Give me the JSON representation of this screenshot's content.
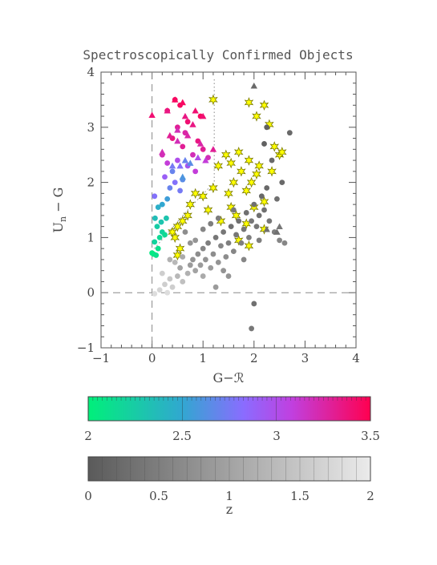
{
  "chart_data": {
    "type": "scatter",
    "title": "Spectroscopically Confirmed Objects",
    "xlabel": "G−ℛ",
    "ylabel_main": "U",
    "ylabel_sub": "n",
    "ylabel_rest": " − G",
    "xlim": [
      -1,
      4
    ],
    "ylim": [
      -1,
      4
    ],
    "x_ticks": [
      "−1",
      "0",
      "1",
      "2",
      "3",
      "4"
    ],
    "y_ticks": [
      "−1",
      "0",
      "1",
      "2",
      "3",
      "4"
    ],
    "grid": false,
    "colors": {
      "z_high_low": "#00f07a",
      "z_high_mid": "#8a6cff",
      "z_high_high": "#ff0060",
      "star": "#ffff00",
      "low_z_gray": "#666666",
      "marker_edge": "#7a7a00"
    },
    "reference_lines": [
      {
        "kind": "dashed",
        "orientation": "vertical",
        "x": 0
      },
      {
        "kind": "dashed",
        "orientation": "horizontal",
        "y": 0
      },
      {
        "kind": "dotted",
        "points": [
          [
            0.0,
            0.75
          ],
          [
            0.68,
            1.48
          ],
          [
            1.22,
            2.0
          ],
          [
            1.22,
            3.9
          ]
        ]
      }
    ],
    "series": [
      {
        "marker": "circle",
        "note_z": "z 2-3.5 colour coded",
        "points": [
          [
            0.0,
            0.72,
            2.05
          ],
          [
            0.03,
            0.7,
            2.05
          ],
          [
            0.08,
            0.68,
            2.1
          ],
          [
            0.12,
            0.8,
            2.1
          ],
          [
            0.05,
            0.92,
            2.2
          ],
          [
            0.15,
            1.0,
            2.15
          ],
          [
            0.2,
            1.1,
            2.2
          ],
          [
            0.25,
            1.05,
            2.15
          ],
          [
            0.1,
            1.2,
            2.25
          ],
          [
            0.18,
            1.28,
            2.3
          ],
          [
            0.28,
            1.35,
            2.3
          ],
          [
            0.06,
            1.35,
            2.35
          ],
          [
            0.2,
            1.6,
            2.5
          ],
          [
            0.3,
            1.7,
            2.55
          ],
          [
            0.12,
            1.55,
            2.45
          ],
          [
            0.35,
            1.9,
            2.7
          ],
          [
            0.05,
            1.75,
            2.8
          ],
          [
            0.45,
            2.0,
            2.8
          ],
          [
            0.55,
            1.85,
            2.75
          ],
          [
            0.25,
            2.1,
            2.9
          ],
          [
            0.4,
            2.2,
            2.7
          ],
          [
            0.6,
            2.05,
            2.65
          ],
          [
            0.7,
            2.3,
            2.95
          ],
          [
            0.5,
            2.4,
            3.0
          ],
          [
            0.3,
            2.35,
            3.1
          ],
          [
            0.2,
            2.5,
            3.2
          ],
          [
            0.8,
            2.5,
            3.2
          ],
          [
            0.6,
            2.65,
            3.3
          ],
          [
            0.9,
            2.75,
            3.35
          ],
          [
            0.4,
            2.8,
            3.35
          ],
          [
            0.5,
            3.0,
            3.3
          ],
          [
            0.7,
            3.1,
            3.4
          ],
          [
            0.3,
            3.3,
            3.4
          ],
          [
            0.55,
            3.4,
            3.45
          ],
          [
            0.65,
            2.9,
            3.25
          ],
          [
            1.0,
            2.6,
            3.3
          ],
          [
            1.1,
            2.45,
            3.2
          ],
          [
            0.85,
            2.2,
            3.1
          ],
          [
            0.95,
            3.2,
            3.45
          ],
          [
            0.45,
            3.5,
            3.45
          ]
        ]
      },
      {
        "marker": "triangle",
        "points": [
          [
            0.0,
            3.22,
            3.4
          ],
          [
            0.2,
            2.55,
            3.2
          ],
          [
            0.3,
            3.3,
            3.35
          ],
          [
            0.45,
            3.5,
            3.45
          ],
          [
            0.5,
            2.95,
            3.2
          ],
          [
            0.6,
            3.45,
            3.45
          ],
          [
            0.65,
            3.2,
            3.35
          ],
          [
            0.7,
            2.85,
            3.25
          ],
          [
            0.8,
            3.05,
            3.35
          ],
          [
            0.85,
            3.3,
            3.4
          ],
          [
            0.55,
            2.3,
            2.8
          ],
          [
            0.65,
            2.4,
            2.7
          ],
          [
            0.75,
            2.35,
            2.65
          ],
          [
            0.4,
            2.3,
            2.75
          ],
          [
            0.95,
            2.7,
            3.25
          ],
          [
            1.05,
            2.4,
            3.1
          ],
          [
            0.5,
            2.75,
            3.2
          ],
          [
            0.35,
            2.85,
            3.3
          ],
          [
            0.6,
            2.1,
            2.6
          ],
          [
            1.2,
            2.6,
            3.3
          ],
          [
            1.0,
            3.2,
            3.4
          ],
          [
            0.9,
            2.45,
            3.0
          ]
        ]
      },
      {
        "marker": "star",
        "color": "#ffff00",
        "points": [
          [
            1.2,
            3.5
          ],
          [
            1.9,
            3.45
          ],
          [
            2.2,
            3.4
          ],
          [
            2.05,
            3.2
          ],
          [
            2.3,
            3.05
          ],
          [
            2.4,
            2.65
          ],
          [
            2.5,
            2.5
          ],
          [
            1.7,
            2.55
          ],
          [
            1.45,
            2.5
          ],
          [
            1.3,
            2.3
          ],
          [
            1.55,
            2.35
          ],
          [
            1.9,
            2.4
          ],
          [
            2.1,
            2.3
          ],
          [
            1.75,
            2.2
          ],
          [
            2.05,
            2.15
          ],
          [
            1.95,
            2.0
          ],
          [
            1.6,
            2.0
          ],
          [
            1.85,
            1.85
          ],
          [
            1.2,
            1.9
          ],
          [
            1.5,
            1.8
          ],
          [
            1.0,
            1.75
          ],
          [
            0.85,
            1.8
          ],
          [
            0.75,
            1.6
          ],
          [
            0.7,
            1.4
          ],
          [
            0.6,
            1.3
          ],
          [
            0.5,
            1.2
          ],
          [
            0.45,
            1.0
          ],
          [
            0.55,
            0.8
          ],
          [
            0.5,
            0.68
          ],
          [
            0.4,
            1.1
          ],
          [
            1.65,
            1.4
          ],
          [
            1.35,
            1.3
          ],
          [
            2.0,
            1.55
          ],
          [
            2.2,
            1.65
          ],
          [
            1.55,
            1.55
          ],
          [
            1.1,
            1.5
          ],
          [
            1.9,
            0.85
          ],
          [
            2.2,
            1.15
          ],
          [
            1.85,
            1.25
          ],
          [
            1.7,
            0.95
          ],
          [
            2.35,
            2.2
          ],
          [
            2.55,
            2.55
          ]
        ]
      },
      {
        "marker": "circle",
        "color": "#666666",
        "note_z": "z 0-2 grayscale",
        "points": [
          [
            0.05,
            -0.02,
            1.8
          ],
          [
            0.15,
            0.05,
            1.7
          ],
          [
            0.25,
            0.15,
            1.6
          ],
          [
            0.35,
            0.25,
            1.5
          ],
          [
            0.4,
            0.1,
            1.6
          ],
          [
            0.5,
            0.3,
            1.3
          ],
          [
            0.55,
            0.45,
            1.0
          ],
          [
            0.6,
            0.2,
            1.4
          ],
          [
            0.7,
            0.35,
            1.2
          ],
          [
            0.75,
            0.5,
            0.9
          ],
          [
            0.8,
            0.6,
            0.8
          ],
          [
            0.85,
            0.4,
            1.0
          ],
          [
            0.9,
            0.7,
            0.7
          ],
          [
            0.95,
            0.5,
            0.9
          ],
          [
            1.0,
            0.8,
            0.6
          ],
          [
            1.05,
            0.6,
            0.8
          ],
          [
            1.1,
            0.9,
            0.5
          ],
          [
            1.15,
            0.45,
            0.9
          ],
          [
            1.2,
            0.7,
            0.7
          ],
          [
            1.25,
            1.0,
            0.4
          ],
          [
            1.3,
            0.55,
            0.8
          ],
          [
            1.35,
            0.85,
            0.6
          ],
          [
            1.4,
            1.1,
            0.4
          ],
          [
            1.45,
            0.65,
            0.7
          ],
          [
            1.5,
            0.9,
            0.5
          ],
          [
            1.55,
            1.2,
            0.3
          ],
          [
            1.6,
            0.75,
            0.6
          ],
          [
            1.65,
            1.05,
            0.4
          ],
          [
            1.7,
            1.3,
            0.3
          ],
          [
            1.75,
            0.9,
            0.5
          ],
          [
            1.8,
            1.15,
            0.4
          ],
          [
            1.85,
            1.45,
            0.3
          ],
          [
            1.9,
            1.0,
            0.5
          ],
          [
            1.95,
            1.3,
            0.4
          ],
          [
            2.0,
            1.6,
            0.3
          ],
          [
            2.05,
            1.2,
            0.4
          ],
          [
            2.1,
            1.4,
            0.3
          ],
          [
            2.15,
            1.75,
            0.2
          ],
          [
            2.2,
            1.5,
            0.3
          ],
          [
            2.25,
            1.9,
            0.2
          ],
          [
            2.3,
            1.3,
            0.4
          ],
          [
            2.4,
            1.1,
            0.5
          ],
          [
            2.5,
            0.95,
            0.6
          ],
          [
            2.6,
            0.9,
            0.6
          ],
          [
            2.45,
            1.7,
            0.3
          ],
          [
            2.2,
            2.7,
            0.1
          ],
          [
            2.25,
            3.0,
            0.1
          ],
          [
            2.7,
            2.9,
            0.2
          ],
          [
            2.35,
            2.4,
            0.2
          ],
          [
            2.55,
            2.0,
            0.2
          ],
          [
            2.0,
            -0.2,
            0.3
          ],
          [
            1.95,
            -0.65,
            0.4
          ],
          [
            1.25,
            0.1,
            0.9
          ],
          [
            0.35,
            0.6,
            1.2
          ],
          [
            0.6,
            0.65,
            1.1
          ],
          [
            0.85,
            0.95,
            0.8
          ],
          [
            1.0,
            0.3,
            1.1
          ],
          [
            0.2,
            0.35,
            1.6
          ],
          [
            0.45,
            0.55,
            1.3
          ],
          [
            0.3,
            0.0,
            1.8
          ],
          [
            1.5,
            0.3,
            0.8
          ],
          [
            1.8,
            0.6,
            0.6
          ],
          [
            2.1,
            0.95,
            0.5
          ],
          [
            1.3,
            1.35,
            0.5
          ],
          [
            1.6,
            1.5,
            0.4
          ],
          [
            1.0,
            1.15,
            0.6
          ],
          [
            0.75,
            0.9,
            0.8
          ],
          [
            0.65,
            1.1,
            0.7
          ],
          [
            1.15,
            1.25,
            0.5
          ],
          [
            1.4,
            0.4,
            0.8
          ]
        ]
      },
      {
        "marker": "triangle",
        "color": "#666666",
        "points": [
          [
            2.0,
            3.75,
            0.2
          ],
          [
            2.25,
            1.15,
            0.3
          ],
          [
            2.45,
            1.1,
            0.3
          ],
          [
            2.5,
            1.2,
            0.4
          ]
        ]
      }
    ],
    "colorbars": [
      {
        "name": "high-z",
        "range": [
          2,
          3.5
        ],
        "ticks": [
          "2",
          "2.5",
          "3",
          "3.5"
        ],
        "label": ""
      },
      {
        "name": "low-z",
        "range": [
          0,
          2
        ],
        "ticks": [
          "0",
          "0.5",
          "1",
          "1.5",
          "2"
        ],
        "label": "z"
      }
    ]
  }
}
